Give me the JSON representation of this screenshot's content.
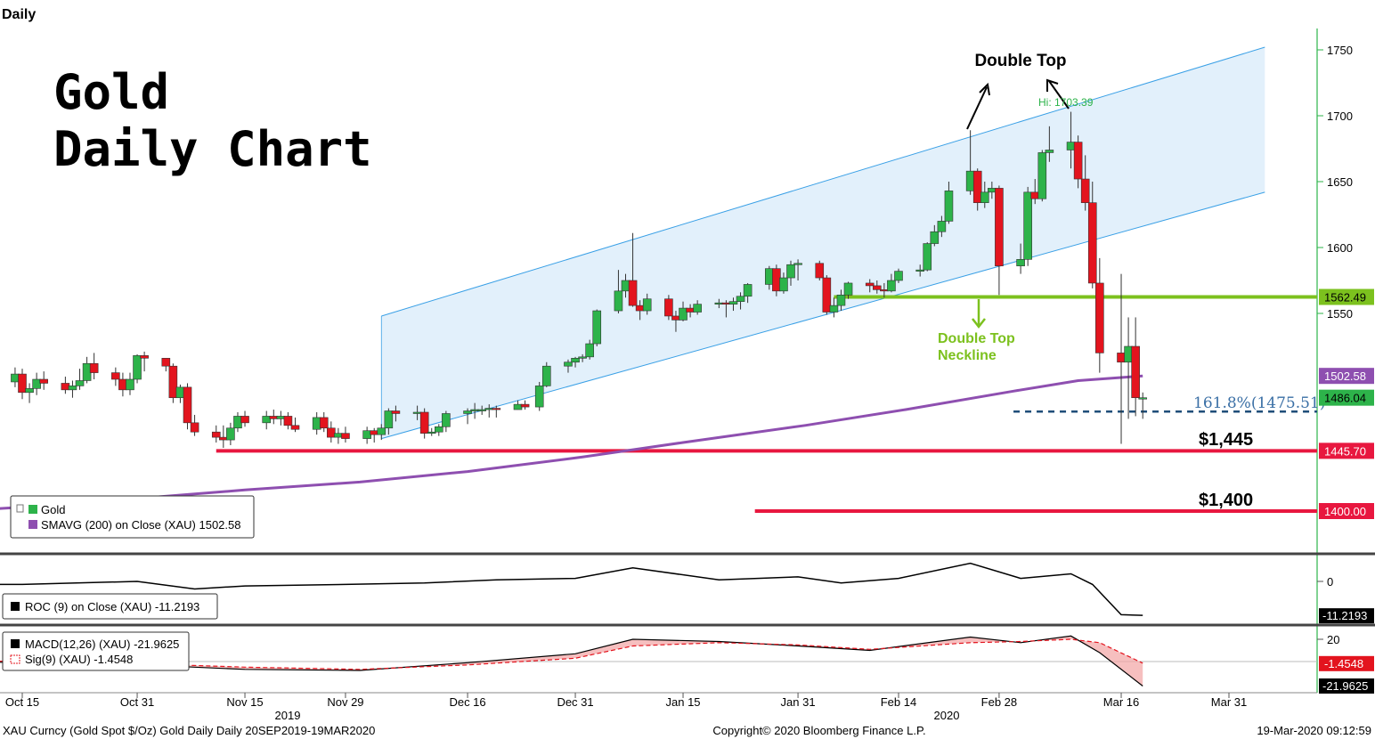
{
  "header": {
    "period_label": "Daily"
  },
  "title_lines": [
    "Gold",
    "Daily  Chart"
  ],
  "footer": {
    "left": "XAU Curncy (Gold Spot  $/Oz) Gold Daily  Daily 20SEP2019-19MAR2020",
    "center": "Copyright© 2020 Bloomberg Finance L.P.",
    "right": "19-Mar-2020 09:12:59"
  },
  "colors": {
    "up": "#2db34a",
    "down": "#e3141e",
    "sma": "#8e4fb0",
    "neckline": "#7cc11e",
    "support": "#e8173f",
    "channel_fill": "#d8ebfa",
    "channel_line": "#3aa0e6",
    "fib": "#1f4e79"
  },
  "chart_data": [
    {
      "type": "candlestick",
      "title": "",
      "x_ticks": [
        "Oct 15",
        "Oct 31",
        "Nov 15",
        "Nov 29",
        "Dec 16",
        "Dec 31",
        "Jan 15",
        "Jan 31",
        "Feb 14",
        "Feb 28",
        "Mar 16",
        "Mar 31"
      ],
      "year_labels": [
        "2019",
        "2020"
      ],
      "y_ticks": [
        1750,
        1700,
        1650,
        1600,
        1550
      ],
      "ylim": [
        1352,
        1767
      ],
      "grid": false,
      "series": [
        {
          "name": "Gold",
          "columns": [
            "date",
            "open",
            "high",
            "low",
            "close"
          ],
          "ohlc": [
            [
              "2019-10-10",
              1505,
              1510,
              1492,
              1500
            ],
            [
              "2019-10-11",
              1500,
              1506,
              1488,
              1498
            ],
            [
              "2019-10-14",
              1498,
              1509,
              1494,
              1504
            ],
            [
              "2019-10-15",
              1504,
              1508,
              1485,
              1490
            ],
            [
              "2019-10-16",
              1490,
              1497,
              1482,
              1493
            ],
            [
              "2019-10-17",
              1493,
              1505,
              1488,
              1500
            ],
            [
              "2019-10-18",
              1500,
              1506,
              1492,
              1497
            ],
            [
              "2019-10-21",
              1497,
              1502,
              1489,
              1492
            ],
            [
              "2019-10-22",
              1492,
              1499,
              1486,
              1495
            ],
            [
              "2019-10-23",
              1495,
              1508,
              1492,
              1499
            ],
            [
              "2019-10-24",
              1499,
              1517,
              1497,
              1512
            ],
            [
              "2019-10-25",
              1512,
              1520,
              1500,
              1505
            ],
            [
              "2019-10-28",
              1505,
              1509,
              1495,
              1500
            ],
            [
              "2019-10-29",
              1500,
              1505,
              1487,
              1492
            ],
            [
              "2019-10-30",
              1492,
              1505,
              1488,
              1500
            ],
            [
              "2019-10-31",
              1500,
              1519,
              1497,
              1518
            ],
            [
              "2019-11-01",
              1518,
              1521,
              1506,
              1516
            ],
            [
              "2019-11-04",
              1516,
              1516,
              1506,
              1510
            ],
            [
              "2019-11-05",
              1510,
              1512,
              1482,
              1486
            ],
            [
              "2019-11-06",
              1486,
              1496,
              1482,
              1494
            ],
            [
              "2019-11-07",
              1494,
              1497,
              1462,
              1467
            ],
            [
              "2019-11-08",
              1467,
              1473,
              1457,
              1460
            ],
            [
              "2019-11-11",
              1460,
              1465,
              1452,
              1456
            ],
            [
              "2019-11-12",
              1456,
              1465,
              1448,
              1454
            ],
            [
              "2019-11-13",
              1454,
              1467,
              1450,
              1463
            ],
            [
              "2019-11-14",
              1463,
              1475,
              1460,
              1472
            ],
            [
              "2019-11-15",
              1472,
              1476,
              1464,
              1467
            ],
            [
              "2019-11-18",
              1467,
              1476,
              1462,
              1472
            ],
            [
              "2019-11-19",
              1472,
              1477,
              1466,
              1470
            ],
            [
              "2019-11-20",
              1470,
              1476,
              1465,
              1472
            ],
            [
              "2019-11-21",
              1472,
              1475,
              1462,
              1465
            ],
            [
              "2019-11-22",
              1465,
              1471,
              1460,
              1462
            ],
            [
              "2019-11-25",
              1462,
              1475,
              1458,
              1471
            ],
            [
              "2019-11-26",
              1471,
              1475,
              1460,
              1463
            ],
            [
              "2019-11-27",
              1463,
              1468,
              1452,
              1456
            ],
            [
              "2019-11-28",
              1456,
              1463,
              1451,
              1459
            ],
            [
              "2019-11-29",
              1459,
              1464,
              1452,
              1455
            ],
            [
              "2019-12-02",
              1455,
              1464,
              1451,
              1461
            ],
            [
              "2019-12-03",
              1461,
              1463,
              1452,
              1458
            ],
            [
              "2019-12-04",
              1458,
              1466,
              1454,
              1463
            ],
            [
              "2019-12-05",
              1463,
              1478,
              1458,
              1476
            ],
            [
              "2019-12-06",
              1476,
              1480,
              1468,
              1474
            ],
            [
              "2019-12-09",
              1474,
              1480,
              1469,
              1475
            ],
            [
              "2019-12-10",
              1475,
              1478,
              1455,
              1459
            ],
            [
              "2019-12-11",
              1459,
              1463,
              1457,
              1460
            ],
            [
              "2019-12-12",
              1460,
              1466,
              1457,
              1464
            ],
            [
              "2019-12-13",
              1464,
              1476,
              1460,
              1474
            ],
            [
              "2019-12-16",
              1474,
              1478,
              1466,
              1476
            ],
            [
              "2019-12-17",
              1476,
              1482,
              1470,
              1477
            ],
            [
              "2019-12-18",
              1477,
              1480,
              1473,
              1477
            ],
            [
              "2019-12-19",
              1477,
              1481,
              1471,
              1478
            ],
            [
              "2019-12-20",
              1478,
              1480,
              1471,
              1477
            ],
            [
              "2019-12-23",
              1477,
              1484,
              1477,
              1481
            ],
            [
              "2019-12-24",
              1481,
              1484,
              1477,
              1479
            ],
            [
              "2019-12-26",
              1479,
              1498,
              1476,
              1495
            ],
            [
              "2019-12-27",
              1495,
              1513,
              1494,
              1510
            ],
            [
              "2019-12-30",
              1510,
              1515,
              1505,
              1513
            ],
            [
              "2019-12-31",
              1513,
              1517,
              1509,
              1516
            ],
            [
              "2020-01-01",
              1516,
              1519,
              1513,
              1517
            ],
            [
              "2020-01-02",
              1517,
              1530,
              1515,
              1527
            ],
            [
              "2020-01-03",
              1527,
              1553,
              1525,
              1552
            ],
            [
              "2020-01-06",
              1552,
              1583,
              1550,
              1567
            ],
            [
              "2020-01-07",
              1567,
              1580,
              1562,
              1575
            ],
            [
              "2020-01-08",
              1575,
              1611,
              1555,
              1556
            ],
            [
              "2020-01-09",
              1556,
              1560,
              1545,
              1552
            ],
            [
              "2020-01-10",
              1552,
              1565,
              1549,
              1561
            ],
            [
              "2020-01-13",
              1561,
              1564,
              1545,
              1548
            ],
            [
              "2020-01-14",
              1548,
              1552,
              1536,
              1545
            ],
            [
              "2020-01-15",
              1545,
              1559,
              1544,
              1554
            ],
            [
              "2020-01-16",
              1554,
              1557,
              1547,
              1551
            ],
            [
              "2020-01-17",
              1551,
              1560,
              1549,
              1557
            ],
            [
              "2020-01-20",
              1557,
              1561,
              1554,
              1558
            ],
            [
              "2020-01-21",
              1558,
              1560,
              1547,
              1557
            ],
            [
              "2020-01-22",
              1557,
              1562,
              1552,
              1559
            ],
            [
              "2020-01-23",
              1559,
              1566,
              1553,
              1563
            ],
            [
              "2020-01-24",
              1563,
              1573,
              1558,
              1572
            ],
            [
              "2020-01-27",
              1572,
              1586,
              1568,
              1584
            ],
            [
              "2020-01-28",
              1584,
              1587,
              1563,
              1567
            ],
            [
              "2020-01-29",
              1567,
              1581,
              1565,
              1577
            ],
            [
              "2020-01-30",
              1577,
              1590,
              1571,
              1587
            ],
            [
              "2020-01-31",
              1587,
              1591,
              1575,
              1588
            ],
            [
              "2020-02-03",
              1588,
              1590,
              1575,
              1577
            ],
            [
              "2020-02-04",
              1577,
              1579,
              1549,
              1551
            ],
            [
              "2020-02-05",
              1551,
              1562,
              1547,
              1556
            ],
            [
              "2020-02-06",
              1556,
              1568,
              1552,
              1564
            ],
            [
              "2020-02-07",
              1564,
              1574,
              1561,
              1573
            ],
            [
              "2020-02-10",
              1573,
              1576,
              1566,
              1571
            ],
            [
              "2020-02-11",
              1571,
              1575,
              1565,
              1568
            ],
            [
              "2020-02-12",
              1568,
              1573,
              1562,
              1567
            ],
            [
              "2020-02-13",
              1567,
              1580,
              1566,
              1575
            ],
            [
              "2020-02-14",
              1575,
              1584,
              1573,
              1582
            ],
            [
              "2020-02-17",
              1582,
              1587,
              1578,
              1583
            ],
            [
              "2020-02-18",
              1583,
              1604,
              1582,
              1603
            ],
            [
              "2020-02-19",
              1603,
              1617,
              1601,
              1612
            ],
            [
              "2020-02-20",
              1612,
              1624,
              1608,
              1620
            ],
            [
              "2020-02-21",
              1620,
              1650,
              1618,
              1643
            ],
            [
              "2020-02-24",
              1643,
              1689,
              1640,
              1658
            ],
            [
              "2020-02-25",
              1658,
              1660,
              1628,
              1634
            ],
            [
              "2020-02-26",
              1634,
              1650,
              1630,
              1642
            ],
            [
              "2020-02-27",
              1642,
              1650,
              1637,
              1645
            ],
            [
              "2020-02-28",
              1645,
              1647,
              1564,
              1586
            ],
            [
              "2020-03-02",
              1586,
              1603,
              1580,
              1591
            ],
            [
              "2020-03-03",
              1591,
              1646,
              1586,
              1642
            ],
            [
              "2020-03-04",
              1642,
              1652,
              1633,
              1637
            ],
            [
              "2020-03-05",
              1637,
              1674,
              1635,
              1672
            ],
            [
              "2020-03-06",
              1672,
              1692,
              1665,
              1674
            ],
            [
              "2020-03-09",
              1674,
              1703,
              1660,
              1680
            ],
            [
              "2020-03-10",
              1680,
              1685,
              1645,
              1652
            ],
            [
              "2020-03-11",
              1652,
              1670,
              1628,
              1634
            ],
            [
              "2020-03-12",
              1634,
              1650,
              1569,
              1573
            ],
            [
              "2020-03-13",
              1573,
              1592,
              1505,
              1520
            ],
            [
              "2020-03-16",
              1520,
              1580,
              1451,
              1513
            ],
            [
              "2020-03-17",
              1513,
              1547,
              1470,
              1525
            ],
            [
              "2020-03-18",
              1525,
              1547,
              1472,
              1486
            ],
            [
              "2020-03-19",
              1486,
              1490,
              1470,
              1486
            ]
          ]
        },
        {
          "name": "SMAVG (200)  on Close (XAU)",
          "last": 1502.58
        }
      ],
      "legend": [
        "Gold",
        "SMAVG (200)  on Close (XAU) 1502.58"
      ],
      "legend_placement": "bottom-left",
      "price_labels": [
        {
          "value": 1562.49,
          "text": "1562.49",
          "color": "#7cc11e"
        },
        {
          "value": 1502.58,
          "text": "1502.58",
          "color": "#8e4fb0"
        },
        {
          "value": 1486.04,
          "text": "1486.04",
          "color": "#2db34a"
        },
        {
          "value": 1445.7,
          "text": "1445.70",
          "color": "#e8173f"
        },
        {
          "value": 1400,
          "text": "1400.00",
          "color": "#e8173f"
        }
      ],
      "annotations": {
        "double_top": "Double Top",
        "neckline": [
          "Double Top",
          "Neckline"
        ],
        "high": "Hi: 1703.39",
        "fib": "161.8%(1475.51)",
        "support_1": "$1,445",
        "support_2": "$1,400",
        "neckline_value": 1562.49,
        "fib_value": 1475.51,
        "support_1_value": 1445.7,
        "support_2_value": 1400
      }
    },
    {
      "type": "line",
      "title": "",
      "series": [
        {
          "name": "ROC (9)  on Close (XAU)",
          "last": -11.2193
        }
      ],
      "legend": [
        "ROC (9)  on Close (XAU) -11.2193"
      ],
      "y_ticks": [
        0
      ],
      "price_labels": [
        {
          "value": -11.2193,
          "text": "-11.2193"
        }
      ]
    },
    {
      "type": "area",
      "title": "",
      "series": [
        {
          "name": "MACD(12,26) (XAU)",
          "last": -21.9625
        },
        {
          "name": "Sig(9) (XAU)",
          "last": -1.4548
        }
      ],
      "legend": [
        "MACD(12,26) (XAU)  -21.9625",
        "Sig(9) (XAU)  -1.4548"
      ],
      "y_ticks": [
        20
      ],
      "price_labels": [
        {
          "value": -1.4548,
          "text": "-1.4548"
        },
        {
          "value": -21.9625,
          "text": "-21.9625"
        }
      ]
    }
  ]
}
